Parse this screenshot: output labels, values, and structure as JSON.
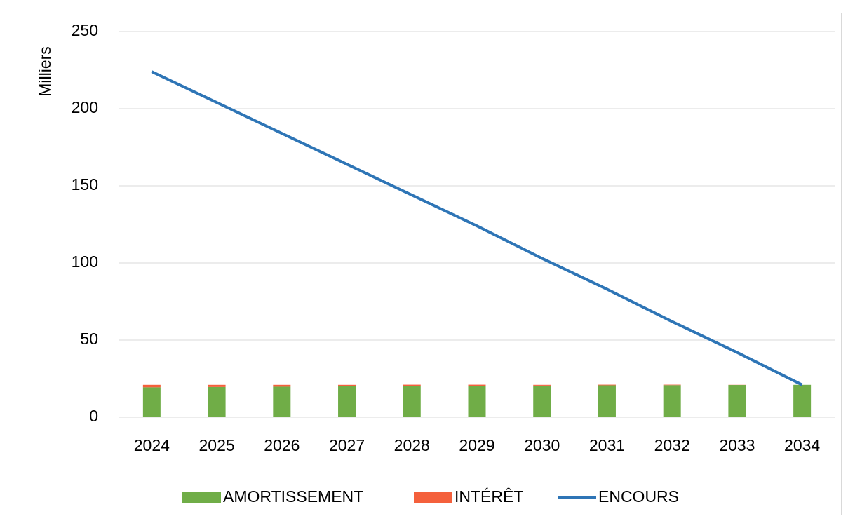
{
  "chart_data": {
    "type": "bar",
    "stacked": true,
    "y_label": "Milliers",
    "categories": [
      "2024",
      "2025",
      "2026",
      "2027",
      "2028",
      "2029",
      "2030",
      "2031",
      "2032",
      "2033",
      "2034"
    ],
    "series": [
      {
        "name": "AMORTISSEMENT",
        "type": "bar",
        "color": "#70ad47",
        "values": [
          19.4,
          19.6,
          19.8,
          20.0,
          20.2,
          20.4,
          20.5,
          20.7,
          20.8,
          20.9,
          21.0
        ]
      },
      {
        "name": "INTÉRÊT",
        "type": "bar",
        "color": "#f4603c",
        "values": [
          1.6,
          1.4,
          1.2,
          1.0,
          0.9,
          0.7,
          0.5,
          0.4,
          0.3,
          0.1,
          0.0
        ]
      },
      {
        "name": "ENCOURS",
        "type": "line",
        "color": "#2e75b6",
        "values": [
          224,
          204,
          184,
          164,
          144,
          124,
          103,
          83,
          62,
          42,
          21
        ]
      }
    ],
    "ylim": [
      0,
      250
    ],
    "yticks": [
      0,
      50,
      100,
      150,
      200,
      250
    ],
    "grid": true,
    "legend": "bottom"
  }
}
